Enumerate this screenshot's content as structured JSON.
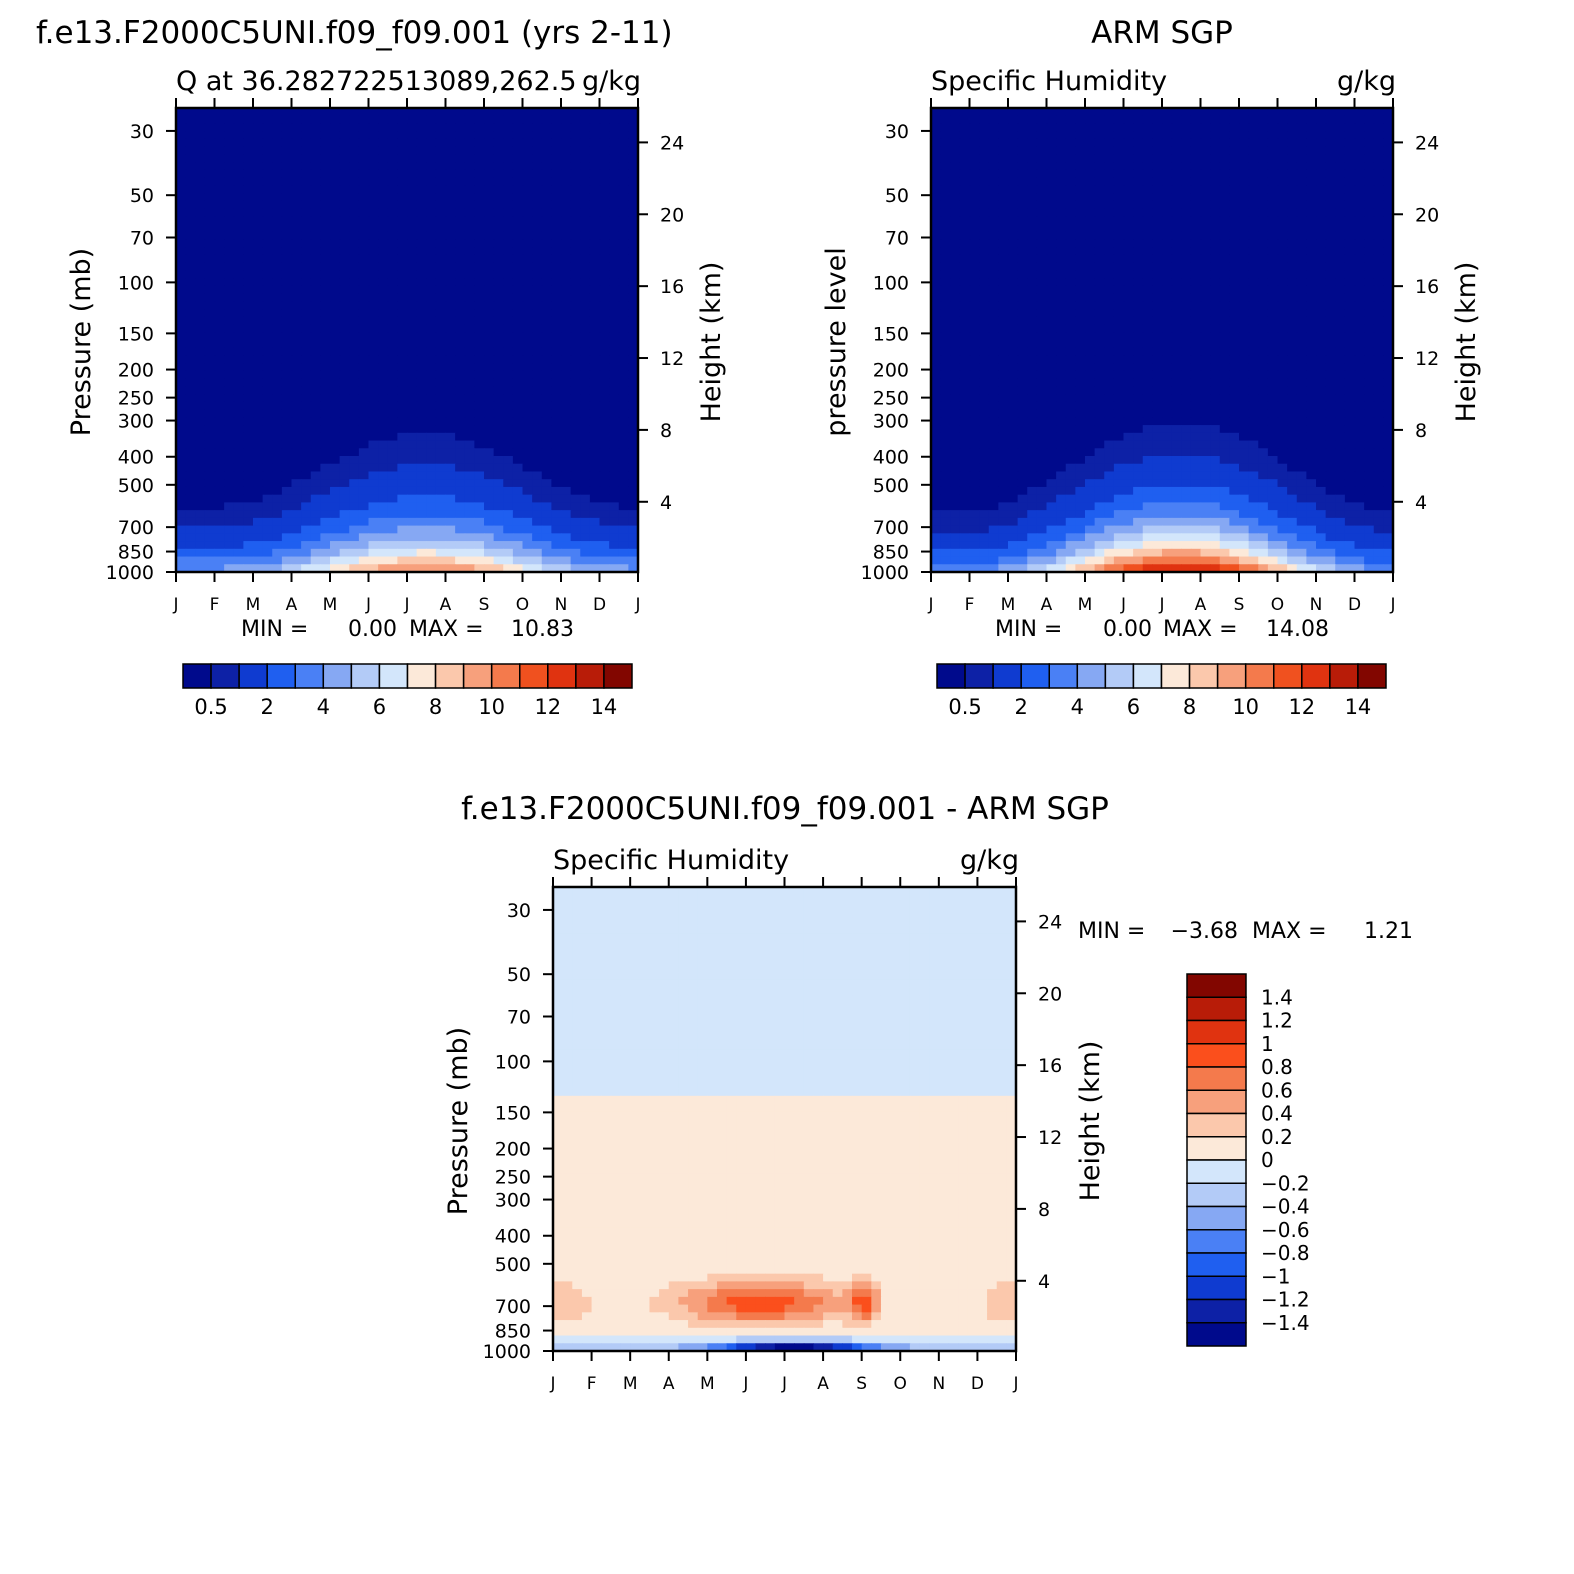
{
  "figure": {
    "panel1_title": "f.e13.F2000C5UNI.f09_f09.001 (yrs 2-11)",
    "panel2_title": "ARM SGP",
    "panel3_title": "f.e13.F2000C5UNI.f09_f09.001 - ARM SGP"
  },
  "chart_data": [
    {
      "type": "heatmap",
      "id": "model",
      "title": "f.e13.F2000C5UNI.f09_f09.001 (yrs 2-11)",
      "subtitle_left": "Q at 36.282722513089,262.5",
      "subtitle_right": "g/kg",
      "ylabel": "Pressure (mb)",
      "ylabel_right": "Height (km)",
      "x_ticks": [
        "J",
        "F",
        "M",
        "A",
        "M",
        "J",
        "J",
        "A",
        "S",
        "O",
        "N",
        "D",
        "J"
      ],
      "y_ticks": [
        30,
        50,
        70,
        100,
        150,
        200,
        250,
        300,
        400,
        500,
        700,
        850,
        1000
      ],
      "y_ticks_right": [
        24,
        20,
        16,
        12,
        8,
        4
      ],
      "ylim": [
        1000,
        25
      ],
      "stats": {
        "min_label": "MIN =",
        "min": "0.00",
        "max_label": "MAX =",
        "max": "10.83"
      },
      "colorbar": {
        "orientation": "horizontal",
        "labels": [
          "0.5",
          "2",
          "4",
          "6",
          "8",
          "10",
          "12",
          "14"
        ],
        "colors": [
          "#000a8c",
          "#0d21a6",
          "#0f3bd0",
          "#1f5ff0",
          "#4a80f5",
          "#86a8f3",
          "#b3cbf7",
          "#d3e6fb",
          "#fce9d9",
          "#fbc8ac",
          "#f7a07c",
          "#f47a4c",
          "#f0511f",
          "#e03310",
          "#b81c08",
          "#820600"
        ]
      },
      "colorbar_levels": [
        0.5,
        1,
        2,
        3,
        4,
        5,
        6,
        7,
        8,
        9,
        10,
        11,
        12,
        13,
        14
      ],
      "field": {
        "summer_max": 10.8,
        "winter_surface": 4.5,
        "shape": "seasonal"
      }
    },
    {
      "type": "heatmap",
      "id": "obs",
      "title": "ARM SGP",
      "subtitle_left": "Specific Humidity",
      "subtitle_right": "g/kg",
      "ylabel": "pressure level",
      "ylabel_right": "Height (km)",
      "x_ticks": [
        "J",
        "F",
        "M",
        "A",
        "M",
        "J",
        "J",
        "A",
        "S",
        "O",
        "N",
        "D",
        "J"
      ],
      "y_ticks": [
        30,
        50,
        70,
        100,
        150,
        200,
        250,
        300,
        400,
        500,
        700,
        850,
        1000
      ],
      "y_ticks_right": [
        24,
        20,
        16,
        12,
        8,
        4
      ],
      "ylim": [
        1000,
        25
      ],
      "stats": {
        "min_label": "MIN =",
        "min": "0.00",
        "max_label": "MAX =",
        "max": "14.08"
      },
      "colorbar": {
        "orientation": "horizontal",
        "labels": [
          "0.5",
          "2",
          "4",
          "6",
          "8",
          "10",
          "12",
          "14"
        ],
        "colors": [
          "#000a8c",
          "#0d21a6",
          "#0f3bd0",
          "#1f5ff0",
          "#4a80f5",
          "#86a8f3",
          "#b3cbf7",
          "#d3e6fb",
          "#fce9d9",
          "#fbc8ac",
          "#f7a07c",
          "#f47a4c",
          "#f0511f",
          "#e03310",
          "#b81c08",
          "#820600"
        ]
      },
      "colorbar_levels": [
        0.5,
        1,
        2,
        3,
        4,
        5,
        6,
        7,
        8,
        9,
        10,
        11,
        12,
        13,
        14
      ],
      "field": {
        "summer_max": 14.1,
        "winter_surface": 4.0,
        "shape": "seasonal"
      }
    },
    {
      "type": "heatmap",
      "id": "diff",
      "title": "f.e13.F2000C5UNI.f09_f09.001 - ARM SGP",
      "subtitle_left": "Specific Humidity",
      "subtitle_right": "g/kg",
      "ylabel": "Pressure (mb)",
      "ylabel_right": "Height (km)",
      "x_ticks": [
        "J",
        "F",
        "M",
        "A",
        "M",
        "J",
        "J",
        "A",
        "S",
        "O",
        "N",
        "D",
        "J"
      ],
      "y_ticks": [
        30,
        50,
        70,
        100,
        150,
        200,
        250,
        300,
        400,
        500,
        700,
        850,
        1000
      ],
      "y_ticks_right": [
        24,
        20,
        16,
        12,
        8,
        4
      ],
      "ylim": [
        1000,
        25
      ],
      "stats": {
        "min_label": "MIN =",
        "min": "-3.68",
        "max_label": "MAX =",
        "max": "1.21"
      },
      "colorbar": {
        "orientation": "vertical",
        "labels": [
          "1.4",
          "1.2",
          "1",
          "0.8",
          "0.6",
          "0.4",
          "0.2",
          "0",
          "-0.2",
          "-0.4",
          "-0.6",
          "-0.8",
          "-1",
          "-1.2",
          "-1.4"
        ],
        "colors": [
          "#820600",
          "#b81c08",
          "#e03310",
          "#fb4f1c",
          "#f47a4c",
          "#f7a07c",
          "#fbc8ac",
          "#fce9d9",
          "#d3e6fb",
          "#b3cbf7",
          "#86a8f3",
          "#4a80f5",
          "#1f5ff0",
          "#0f3bd0",
          "#0d21a6",
          "#000a8c"
        ]
      },
      "colorbar_levels": [
        1.4,
        1.2,
        1,
        0.8,
        0.6,
        0.4,
        0.2,
        0,
        -0.2,
        -0.4,
        -0.6,
        -0.8,
        -1,
        -1.2,
        -1.4
      ],
      "field": {
        "min": -3.68,
        "max": 1.21,
        "shape": "difference"
      }
    }
  ]
}
